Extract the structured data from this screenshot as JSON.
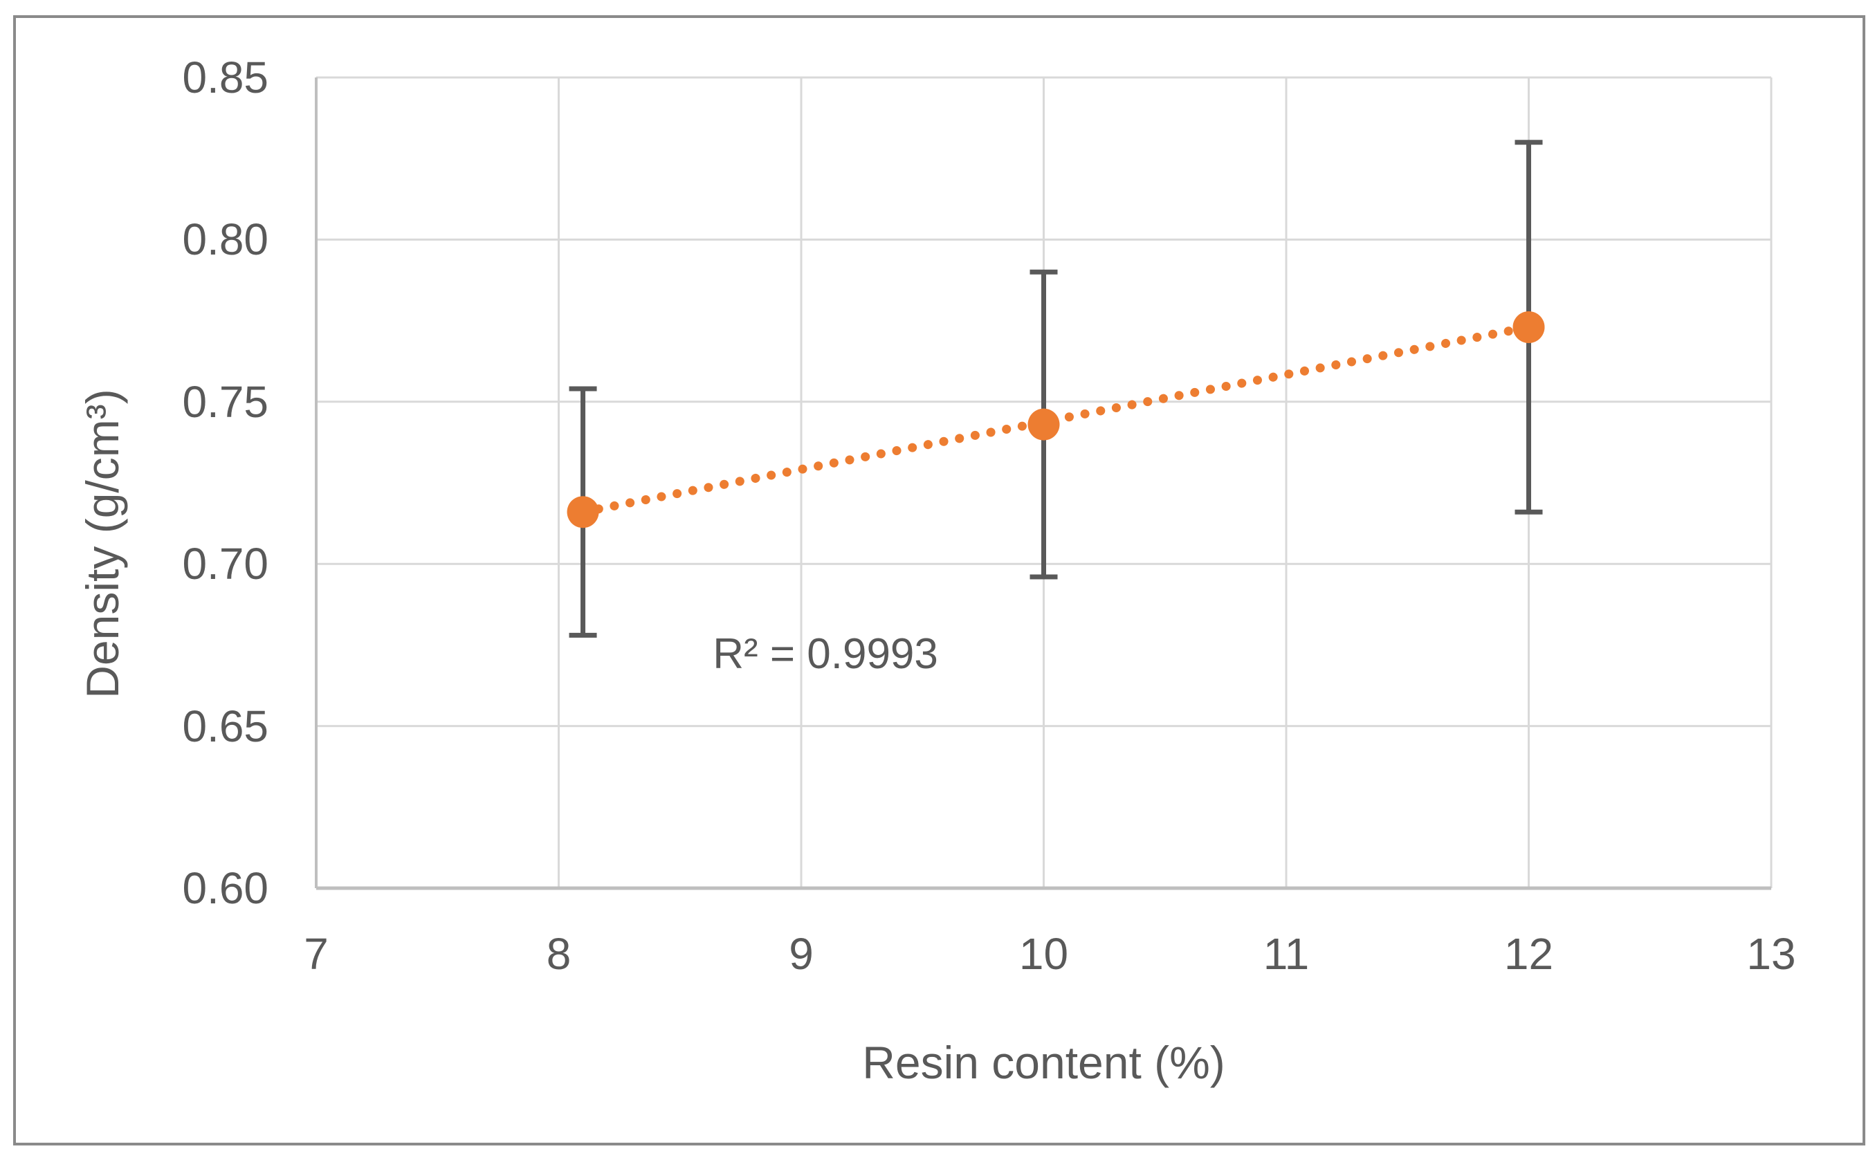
{
  "figure": {
    "background": "#FFFFFF",
    "border_color": "#8A8A8A"
  },
  "colors": {
    "marker_orange": "#ED7D31",
    "error_bar_gray": "#595959",
    "gridline_gray": "#D9D9D9",
    "axis_line_gray": "#BFBFBF",
    "text_gray": "#595959"
  },
  "chart_data": {
    "type": "scatter",
    "title": "",
    "xlabel": "Resin content (%)",
    "ylabel": "Density (g/cm³)",
    "xlim": [
      7,
      13
    ],
    "ylim": [
      0.6,
      0.85
    ],
    "x_ticks": [
      "7",
      "8",
      "9",
      "10",
      "11",
      "12",
      "13"
    ],
    "y_ticks": [
      "0.85",
      "0.80",
      "0.75",
      "0.70",
      "0.65",
      "0.60"
    ],
    "grid": true,
    "legend": false,
    "series": [
      {
        "x": [
          8.1,
          10,
          12
        ],
        "y": [
          0.716,
          0.743,
          0.773
        ],
        "y_err": [
          0.038,
          0.047,
          0.057
        ],
        "marker": "circle",
        "marker_color": "#ED7D31",
        "error_bar_color": "#595959",
        "trendline_style": "dotted",
        "trendline_color": "#ED7D31"
      }
    ],
    "annotation": {
      "text": "R² = 0.9993",
      "x": 9.1,
      "y": 0.672
    }
  }
}
